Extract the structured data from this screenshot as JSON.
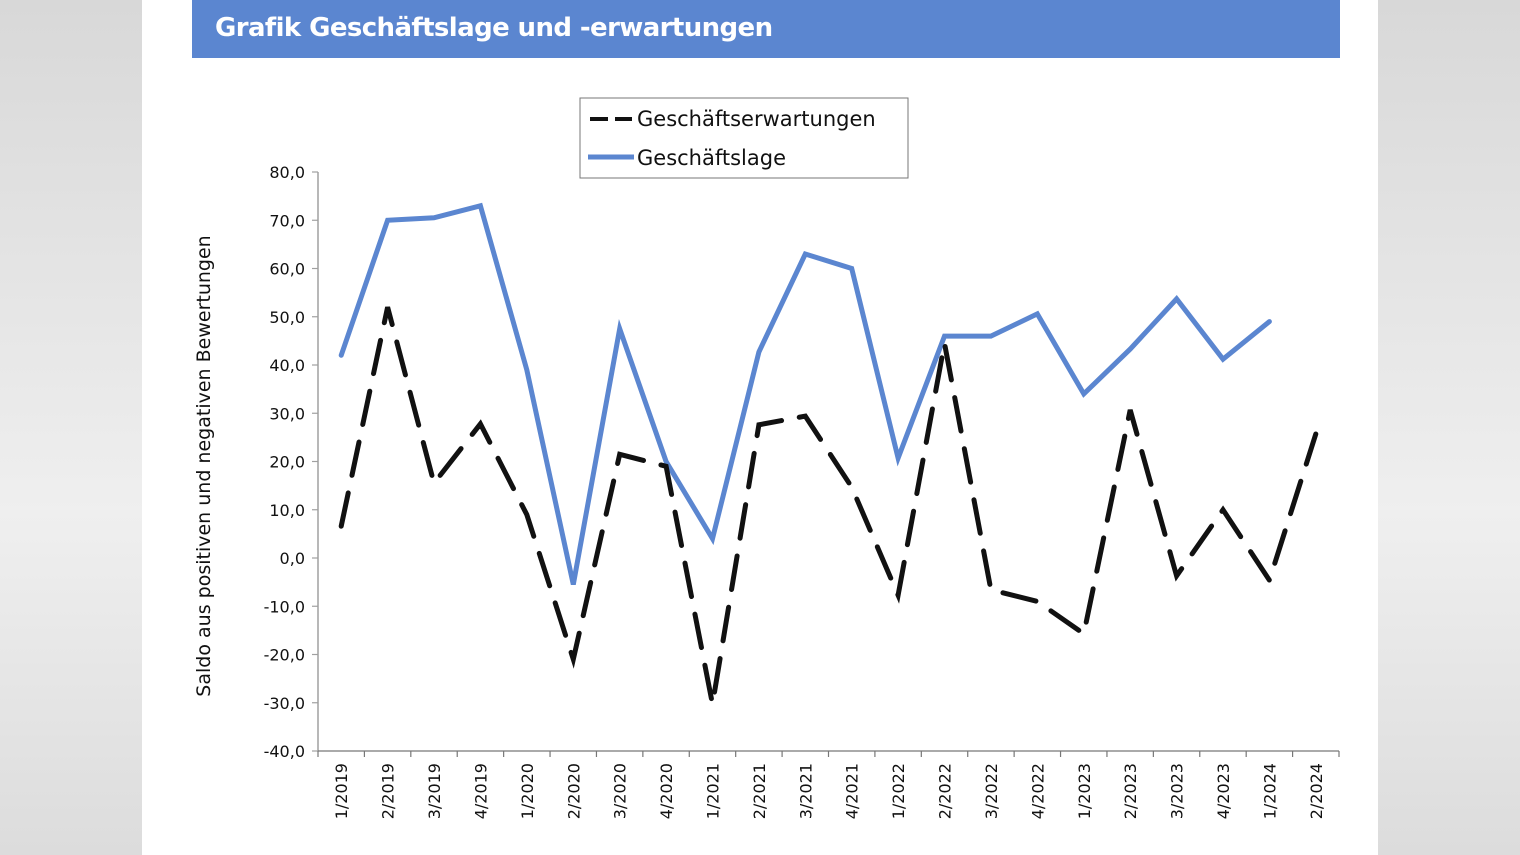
{
  "header": {
    "title": "Grafik Geschäftslage und -erwartungen",
    "bar_color": "#5b86d0"
  },
  "chart_data": {
    "type": "line",
    "title": "Grafik Geschäftslage und -erwartungen",
    "xlabel": "",
    "ylabel": "Saldo aus positiven und negativen Bewertungen",
    "ylim": [
      -40,
      80
    ],
    "yticks": [
      80,
      70,
      60,
      50,
      40,
      30,
      20,
      10,
      0,
      -10,
      -20,
      -30,
      -40
    ],
    "ytick_labels": [
      "80,0",
      "70,0",
      "60,0",
      "50,0",
      "40,0",
      "30,0",
      "20,0",
      "10,0",
      "0,0",
      "-10,0",
      "-20,0",
      "-30,0",
      "-40,0"
    ],
    "categories": [
      "1/2019",
      "2/2019",
      "3/2019",
      "4/2019",
      "1/2020",
      "2/2020",
      "3/2020",
      "4/2020",
      "1/2021",
      "2/2021",
      "3/2021",
      "4/2021",
      "1/2022",
      "2/2022",
      "3/2022",
      "4/2022",
      "1/2023",
      "2/2023",
      "3/2023",
      "4/2023",
      "1/2024",
      "2/2024"
    ],
    "grid": false,
    "legend_position": "top-center",
    "series": [
      {
        "name": "Geschäftserwartungen",
        "style": "dashed",
        "color": "#111111",
        "values": [
          6.6,
          52,
          15.5,
          27.8,
          9,
          -21,
          21.5,
          19,
          -30.3,
          27.6,
          29.4,
          14.7,
          -7.7,
          44.5,
          -6.6,
          -9,
          -15.7,
          30.7,
          -3.7,
          10,
          -4.6,
          25.7
        ]
      },
      {
        "name": "Geschäftslage",
        "style": "solid",
        "color": "#5b86d0",
        "values": [
          42,
          70,
          70.5,
          73,
          39,
          -5.5,
          47.5,
          20,
          4,
          42.7,
          63,
          60,
          20.7,
          46,
          46,
          50.6,
          34,
          43.3,
          53.7,
          41.2,
          49,
          null
        ]
      }
    ]
  }
}
